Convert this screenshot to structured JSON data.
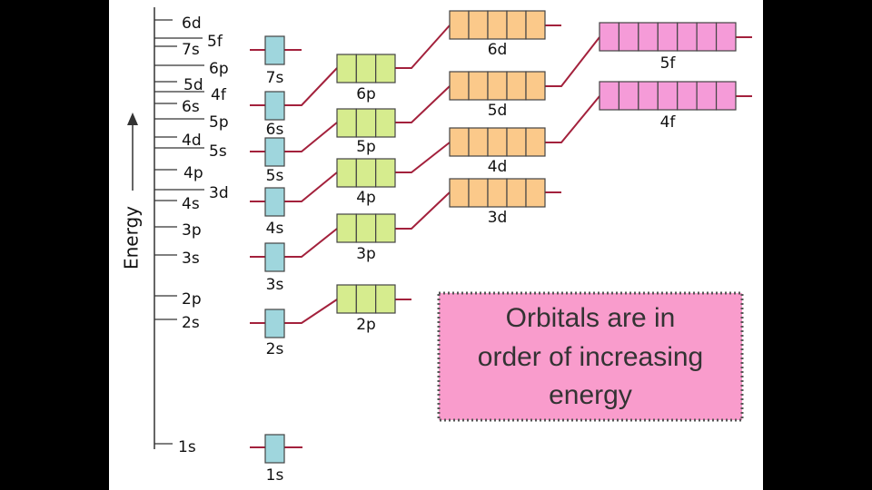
{
  "axis": {
    "label": "Energy"
  },
  "levels": [
    "6d",
    "7s",
    "5f",
    "6p",
    "5d",
    "4f",
    "6s",
    "5p",
    "4d",
    "5s",
    "4p",
    "3d",
    "4s",
    "3p",
    "3s",
    "2p",
    "2s",
    "1s"
  ],
  "orbitals": [
    "1s",
    "2s",
    "2p",
    "3s",
    "3p",
    "4s",
    "3d",
    "4p",
    "5s",
    "4d",
    "5p",
    "6s",
    "4f",
    "5d",
    "6p",
    "7s",
    "5f",
    "6d"
  ],
  "callout": {
    "lines": [
      "Orbitals are in",
      "order of increasing",
      "energy"
    ]
  }
}
